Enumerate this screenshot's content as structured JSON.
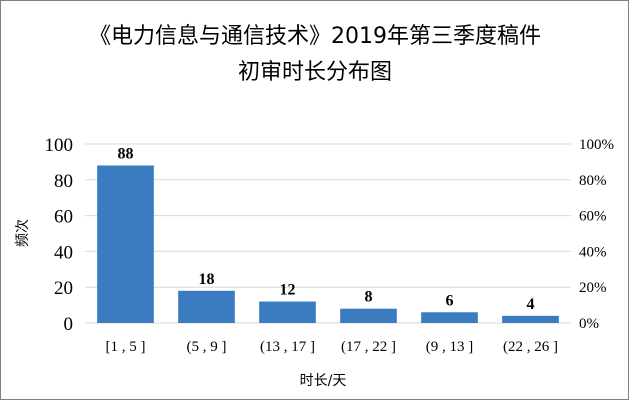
{
  "chart_data": {
    "type": "bar",
    "title": "《电力信息与通信技术》2019年第三季度稿件",
    "subtitle": "初审时长分布图",
    "xlabel": "时长/天",
    "ylabel": "频次",
    "categories": [
      "[1 , 5 ]",
      "(5 , 9 ]",
      "(13 , 17 ]",
      "(17 , 22 ]",
      "(9 , 13 ]",
      "(22 , 26 ]"
    ],
    "values": [
      88,
      18,
      12,
      8,
      6,
      4
    ],
    "ylim": [
      0,
      100
    ],
    "yticks": [
      "0",
      "20",
      "40",
      "60",
      "80",
      "100"
    ],
    "y2lim": [
      0,
      1
    ],
    "y2ticks": [
      "0%",
      "20%",
      "40%",
      "60%",
      "80%",
      "100%"
    ],
    "grid": true,
    "bar_color": "#3b7cc0",
    "grid_color": "#d9d9d9"
  }
}
